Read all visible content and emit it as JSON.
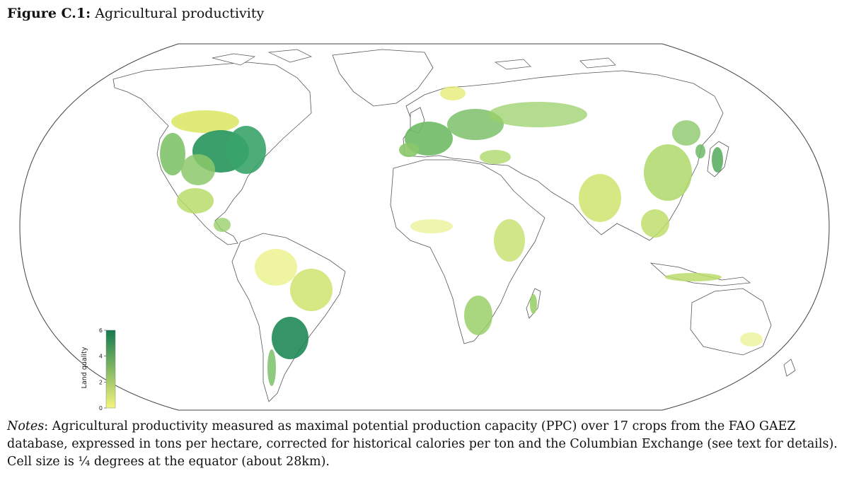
{
  "figure": {
    "label": "Figure C.1:",
    "title": "Agricultural productivity"
  },
  "legend": {
    "title": "Land quality",
    "ticks": [
      "0",
      "2",
      "4",
      "6"
    ],
    "min": 0,
    "max": 6,
    "color_low": "#f4f57a",
    "color_high": "#137a4f"
  },
  "notes": {
    "label": "Notes",
    "text": ": Agricultural productivity measured as maximal potential production capacity (PPC) over 17 crops from the FAO GAEZ database, expressed in tons per hectare, corrected for historical calories per ton and the Columbian Exchange (see text for details). Cell size is ¼ degrees at the equator (about 28km)."
  },
  "map": {
    "projection": "world-equal-earth",
    "regions": [
      {
        "name": "north-america-west",
        "quality": 4
      },
      {
        "name": "us-corn-belt",
        "quality": 6
      },
      {
        "name": "eastern-us",
        "quality": 5
      },
      {
        "name": "canada-prairies",
        "quality": 2
      },
      {
        "name": "mexico-central-america",
        "quality": 3
      },
      {
        "name": "south-america-north",
        "quality": 1
      },
      {
        "name": "brazil-east",
        "quality": 2
      },
      {
        "name": "pampas",
        "quality": 6
      },
      {
        "name": "western-europe",
        "quality": 4
      },
      {
        "name": "eastern-europe",
        "quality": 4
      },
      {
        "name": "russia",
        "quality": 3
      },
      {
        "name": "india",
        "quality": 2
      },
      {
        "name": "china-east",
        "quality": 3
      },
      {
        "name": "japan",
        "quality": 4
      },
      {
        "name": "southeast-asia",
        "quality": 2
      },
      {
        "name": "east-africa",
        "quality": 2
      },
      {
        "name": "southern-africa",
        "quality": 3
      },
      {
        "name": "madagascar",
        "quality": 3
      },
      {
        "name": "indonesia",
        "quality": 2
      }
    ]
  }
}
